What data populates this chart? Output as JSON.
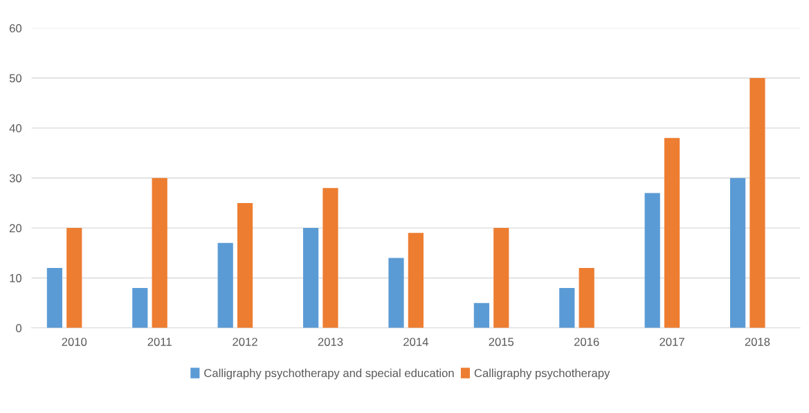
{
  "chart_data": {
    "type": "bar",
    "categories": [
      "2010",
      "2011",
      "2012",
      "2013",
      "2014",
      "2015",
      "2016",
      "2017",
      "2018"
    ],
    "series": [
      {
        "name": "Calligraphy psychotherapy and special education",
        "color": "#5b9bd5",
        "values": [
          12,
          8,
          17,
          20,
          14,
          5,
          8,
          27,
          30
        ]
      },
      {
        "name": "Calligraphy psychotherapy",
        "color": "#ed7d31",
        "values": [
          20,
          30,
          25,
          28,
          19,
          20,
          12,
          38,
          50
        ]
      }
    ],
    "ylim": [
      0,
      60
    ],
    "yticks": [
      0,
      10,
      20,
      30,
      40,
      50,
      60
    ],
    "grid": "y",
    "legend": "bottom"
  }
}
